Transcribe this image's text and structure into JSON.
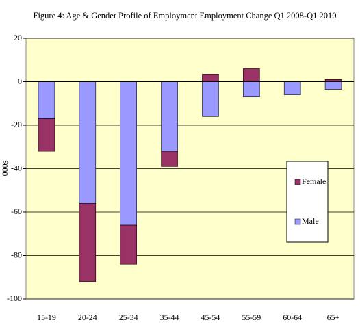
{
  "chart_data": {
    "type": "stacked-bar",
    "title": "Figure 4: Age & Gender Profile of Employment Employment Change Q1 2008-Q1 2010",
    "y_label": "000s",
    "categories": [
      "15-19",
      "20-24",
      "25-34",
      "35-44",
      "45-54",
      "55-59",
      "60-64",
      "65+"
    ],
    "series": [
      {
        "name": "Male",
        "color": "#9999ff",
        "values": [
          -17,
          -56,
          -66,
          -32,
          -16,
          -7,
          -6,
          -3.5
        ]
      },
      {
        "name": "Female",
        "color": "#993366",
        "values": [
          -15,
          -36,
          -18,
          -7,
          3.5,
          6,
          0,
          1
        ]
      }
    ],
    "ylim": [
      -100,
      20
    ],
    "yticks": [
      -100,
      -80,
      -60,
      -40,
      -20,
      0,
      20
    ],
    "grid": true
  }
}
